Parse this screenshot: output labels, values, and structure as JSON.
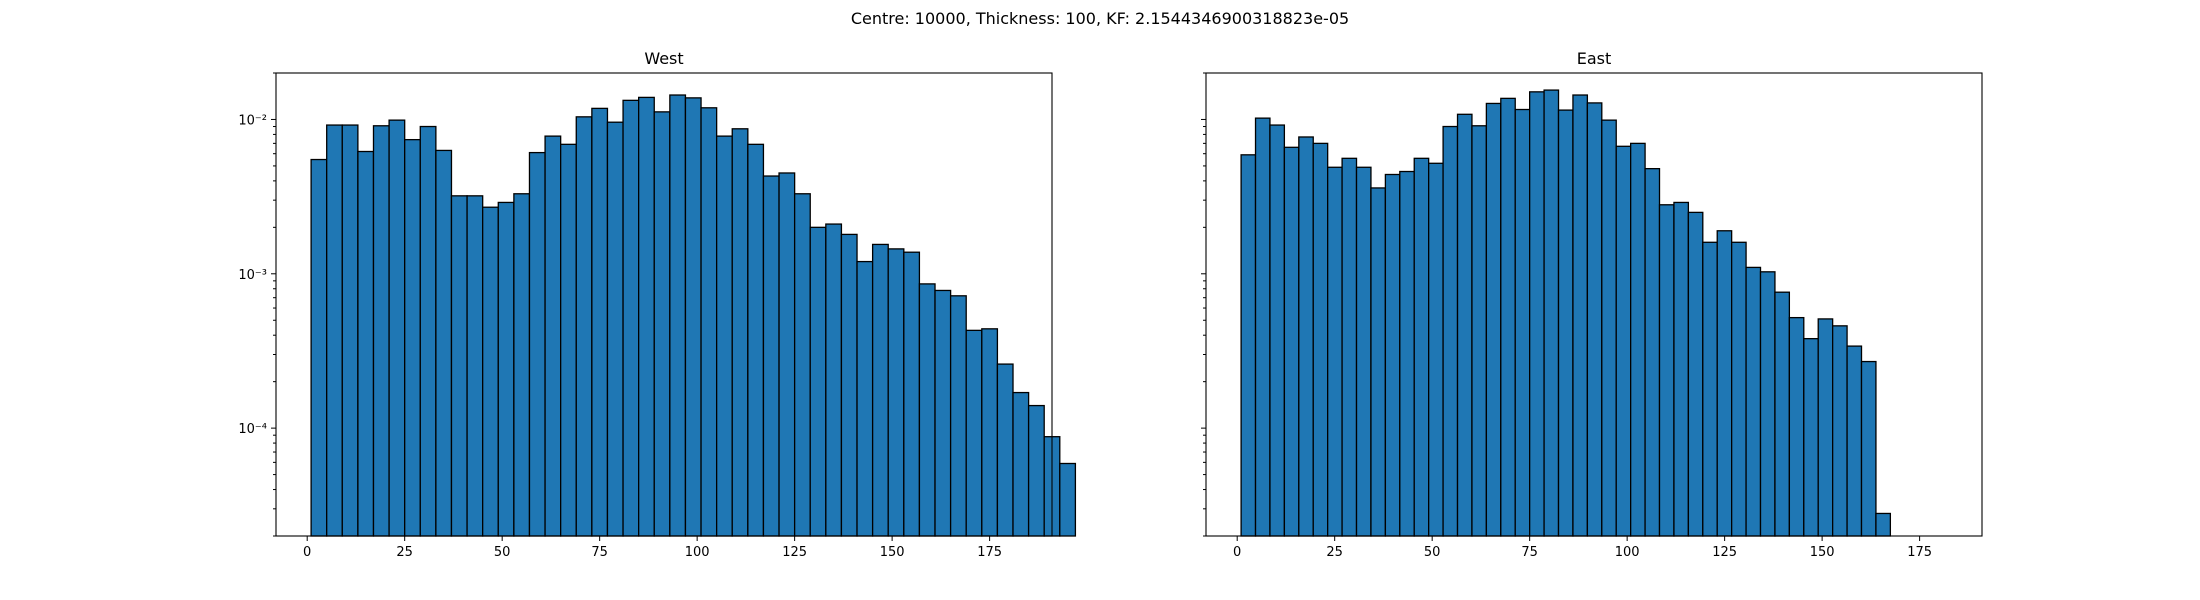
{
  "figure": {
    "suptitle": "Centre: 10000, Thickness: 100, KF: 2.1544346900318823e-05"
  },
  "chart_data": [
    {
      "type": "bar",
      "title": "West",
      "xlabel": "",
      "ylabel": "",
      "yscale": "log",
      "xlim": [
        -8,
        191
      ],
      "ylim": [
        2e-05,
        0.02
      ],
      "xticks": [
        0,
        25,
        50,
        75,
        100,
        125,
        150,
        175
      ],
      "yticks": [
        0.0001,
        0.001,
        0.01
      ],
      "ytick_labels": [
        "10⁻⁴",
        "10⁻³",
        "10⁻²"
      ],
      "bin_start": 1,
      "bin_width": 4.0,
      "values": [
        0.0055,
        0.0092,
        0.0092,
        0.0062,
        0.0091,
        0.0099,
        0.0074,
        0.009,
        0.0063,
        0.0032,
        0.0032,
        0.0027,
        0.0029,
        0.0033,
        0.0061,
        0.0078,
        0.0069,
        0.0104,
        0.0118,
        0.0096,
        0.0133,
        0.0139,
        0.0112,
        0.0144,
        0.0138,
        0.0119,
        0.0078,
        0.0087,
        0.0069,
        0.0043,
        0.0045,
        0.0033,
        0.002,
        0.0021,
        0.0018,
        0.0012,
        0.00155,
        0.00145,
        0.00138,
        0.00086,
        0.00078,
        0.00072,
        0.00043,
        0.00044,
        0.00026,
        0.00017,
        0.00014,
        8.8e-05,
        5.9e-05
      ]
    },
    {
      "type": "bar",
      "title": "East",
      "xlabel": "",
      "ylabel": "",
      "yscale": "log",
      "xlim": [
        -8,
        191
      ],
      "ylim": [
        2e-05,
        0.02
      ],
      "xticks": [
        0,
        25,
        50,
        75,
        100,
        125,
        150,
        175
      ],
      "yticks": [
        0.0001,
        0.001,
        0.01
      ],
      "ytick_labels": [
        "",
        "",
        ""
      ],
      "bin_start": 1,
      "bin_width": 3.7,
      "values": [
        0.0059,
        0.0102,
        0.0092,
        0.0066,
        0.0077,
        0.007,
        0.0049,
        0.0056,
        0.0049,
        0.0036,
        0.0044,
        0.0046,
        0.0056,
        0.0052,
        0.009,
        0.0108,
        0.0091,
        0.0127,
        0.0137,
        0.0116,
        0.0151,
        0.0155,
        0.0115,
        0.0144,
        0.0128,
        0.0099,
        0.0067,
        0.007,
        0.0048,
        0.0028,
        0.0029,
        0.0025,
        0.0016,
        0.0019,
        0.0016,
        0.0011,
        0.00103,
        0.00076,
        0.00052,
        0.00038,
        0.00051,
        0.00046,
        0.00034,
        0.00027,
        2.8e-05
      ]
    }
  ]
}
